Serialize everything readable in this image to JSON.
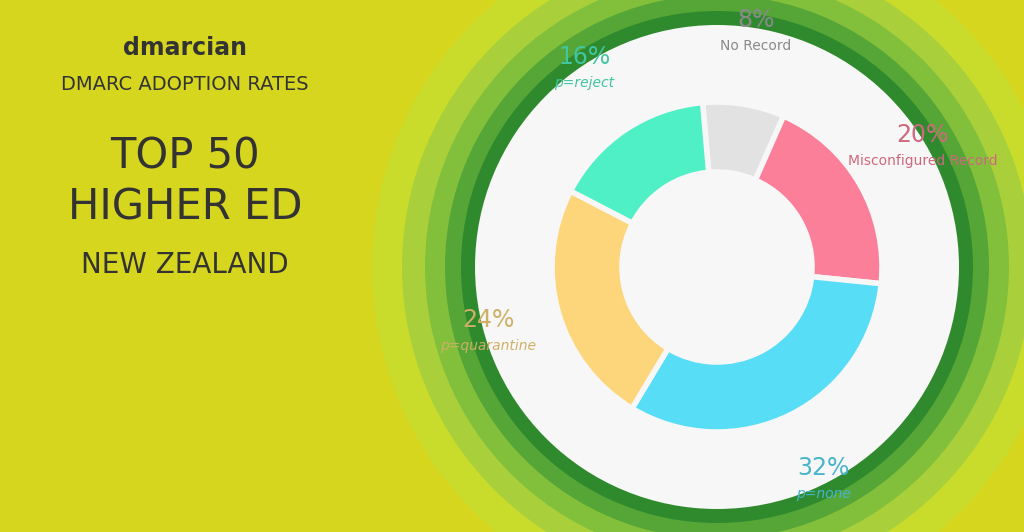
{
  "chart_data": {
    "type": "pie",
    "brand": "dmarcian",
    "subtitle": "DMARC ADOPTION RATES",
    "title": "TOP 50\nHIGHER ED",
    "region": "NEW ZEALAND",
    "categories": [
      "No Record",
      "Misconfigured Record",
      "p=none",
      "p=quarantine",
      "p=reject"
    ],
    "values": [
      8,
      20,
      32,
      24,
      16
    ],
    "value_labels": [
      "8%",
      "20%",
      "32%",
      "24%",
      "16%"
    ],
    "colors": [
      "#e2e2e2",
      "#fb7f98",
      "#58ddf7",
      "#fdd67c",
      "#4ff0c6"
    ],
    "data_labels": true
  }
}
